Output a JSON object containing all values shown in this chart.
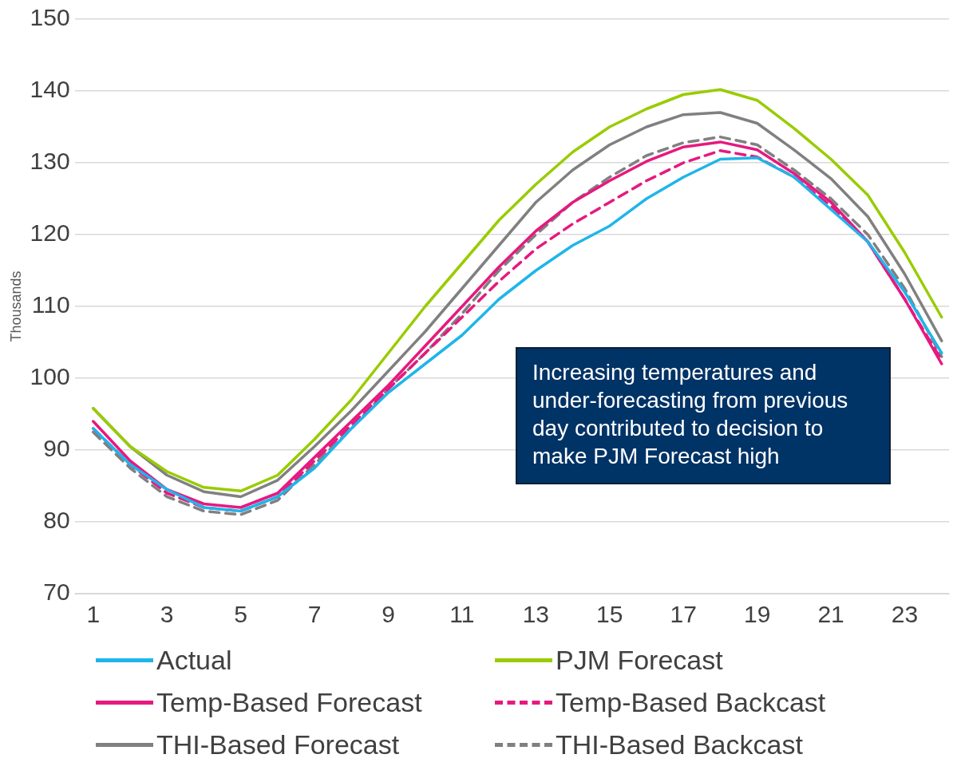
{
  "chart_data": {
    "type": "line",
    "ylabel": "Thousands",
    "x": [
      1,
      2,
      3,
      4,
      5,
      6,
      7,
      8,
      9,
      10,
      11,
      12,
      13,
      14,
      15,
      16,
      17,
      18,
      19,
      20,
      21,
      22,
      23,
      24
    ],
    "xlim": [
      0.5,
      24.2
    ],
    "xticks": [
      1,
      3,
      5,
      7,
      9,
      11,
      13,
      15,
      17,
      19,
      21,
      23
    ],
    "ylim": [
      70,
      150
    ],
    "yticks": [
      70,
      80,
      90,
      100,
      110,
      120,
      130,
      140,
      150
    ],
    "grid": "y",
    "legend": "bottom",
    "marker": "none",
    "annotations": [
      "Increasing temperatures and under-forecasting from previous day contributed to decision to make PJM Forecast high"
    ],
    "series": [
      {
        "name": "Actual",
        "color": "#1fb5ea",
        "line_style": "solid",
        "values": [
          93,
          88,
          84.5,
          82,
          81.5,
          83.5,
          87.5,
          93,
          98,
          102,
          106,
          111,
          115,
          118.5,
          121.2,
          125,
          128,
          130.5,
          130.7,
          128,
          123.5,
          119,
          112,
          103.5
        ]
      },
      {
        "name": "PJM Forecast",
        "color": "#99cc00",
        "line_style": "solid",
        "values": [
          95.8,
          90.5,
          87,
          84.8,
          84.3,
          86.5,
          91.5,
          97,
          103.5,
          110,
          116,
          122,
          127,
          131.5,
          135,
          137.5,
          139.5,
          140.2,
          138.7,
          134.8,
          130.5,
          125.5,
          117.5,
          108.5
        ]
      },
      {
        "name": "Temp-Based Forecast",
        "color": "#e6197f",
        "line_style": "solid",
        "values": [
          94,
          88.5,
          84.5,
          82.5,
          82,
          84,
          89,
          94,
          99,
          104.5,
          110,
          115.5,
          120.5,
          124.5,
          127.5,
          130.2,
          132.2,
          132.9,
          131.8,
          128.5,
          124.5,
          119,
          111,
          102
        ]
      },
      {
        "name": "Temp-Based Backcast",
        "color": "#e6197f",
        "line_style": "dashed",
        "values": [
          93,
          88,
          84,
          82,
          81.5,
          83.5,
          88.5,
          93.5,
          98.5,
          103.5,
          108.5,
          113.5,
          118,
          121.5,
          124.5,
          127.5,
          130,
          131.7,
          130.8,
          128,
          124,
          119,
          111,
          102.5
        ]
      },
      {
        "name": "THI-Based Forecast",
        "color": "#808080",
        "line_style": "solid",
        "values": [
          95.8,
          90.5,
          86.5,
          84.2,
          83.5,
          85.8,
          90.5,
          95.5,
          101,
          106.5,
          112.5,
          118.5,
          124.5,
          129,
          132.5,
          135,
          136.7,
          137,
          135.5,
          131.8,
          127.8,
          122.5,
          114.5,
          105.2
        ]
      },
      {
        "name": "THI-Based Backcast",
        "color": "#808080",
        "line_style": "dashed",
        "values": [
          92.5,
          87.5,
          83.5,
          81.5,
          81,
          83,
          88,
          93,
          98.5,
          103.5,
          109,
          115,
          120,
          124.5,
          128,
          131,
          132.8,
          133.6,
          132.5,
          129,
          125,
          120,
          112.5,
          103
        ]
      }
    ]
  }
}
